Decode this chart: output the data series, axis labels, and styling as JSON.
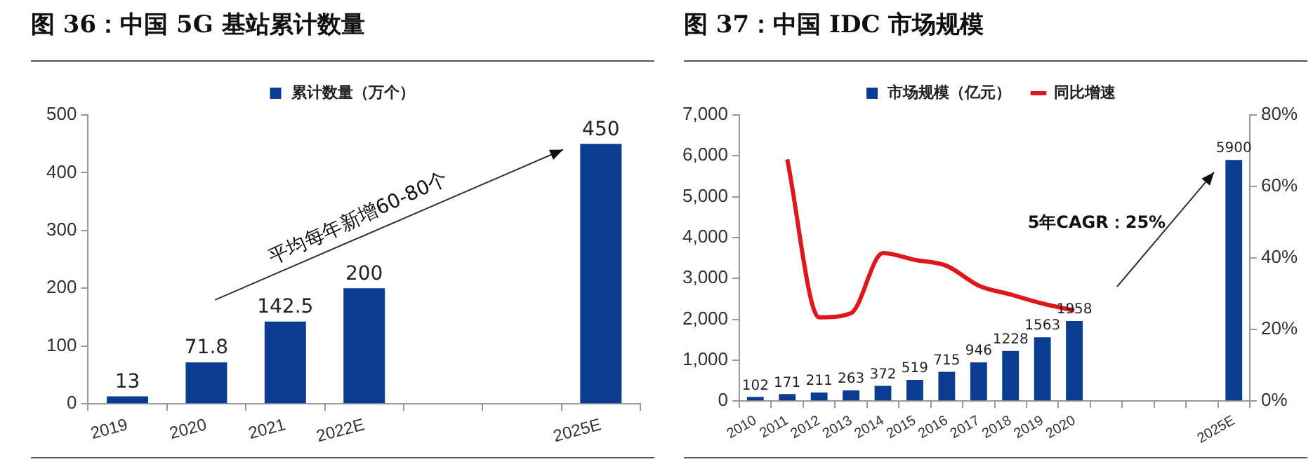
{
  "chart_data": [
    {
      "type": "bar",
      "title": "图 36：中国 5G 基站累计数量",
      "categories": [
        "2019",
        "2020",
        "2021",
        "2022E",
        null,
        null,
        "2025E"
      ],
      "series": [
        {
          "name": "累计数量（万个）",
          "color": "#0a3d91",
          "values": [
            13,
            71.8,
            142.5,
            200,
            null,
            null,
            450
          ]
        }
      ],
      "ylim": [
        0,
        500
      ],
      "yticks": [
        0,
        100,
        200,
        300,
        400,
        500
      ],
      "grid": false,
      "legend": "top",
      "data_labels": true,
      "annotations": [
        "平均每年新增60-80个"
      ]
    },
    {
      "type": "bar",
      "title": "图 37：中国 IDC 市场规模",
      "categories": [
        "2010",
        "2011",
        "2012",
        "2013",
        "2014",
        "2015",
        "2016",
        "2017",
        "2018",
        "2019",
        "2020",
        null,
        null,
        null,
        null,
        "2025E"
      ],
      "series": [
        {
          "name": "市场规模（亿元）",
          "color": "#0a3d91",
          "values": [
            102,
            171,
            211,
            263,
            372,
            519,
            715,
            946,
            1228,
            1563,
            1958,
            null,
            null,
            null,
            null,
            5900
          ],
          "value_labels": [
            "102",
            "171",
            "211",
            "263",
            "372",
            "519",
            "715",
            "946",
            "1228",
            "1563",
            "1958",
            null,
            null,
            null,
            null,
            "5900"
          ]
        },
        {
          "name": "同比增速",
          "type": "line",
          "axis": "y2",
          "color": "#e0161d",
          "values": [
            null,
            67.6,
            23.4,
            24.6,
            41.4,
            39.5,
            37.8,
            32.3,
            29.8,
            27.3,
            25.3,
            null,
            null,
            null,
            null,
            null
          ]
        }
      ],
      "ylim": [
        0,
        7000
      ],
      "yticks": [
        0,
        {
          "value": 1000,
          "label": "1,000"
        },
        {
          "value": 2000,
          "label": "2,000"
        },
        {
          "value": 3000,
          "label": "3,000"
        },
        {
          "value": 4000,
          "label": "4,000"
        },
        {
          "value": 5000,
          "label": "5,000"
        },
        {
          "value": 6000,
          "label": "6,000"
        },
        {
          "value": 7000,
          "label": "7,000"
        }
      ],
      "y2lim": [
        0,
        80
      ],
      "y2ticks": [
        {
          "value": 0,
          "label": "0%"
        },
        {
          "value": 20,
          "label": "20%"
        },
        {
          "value": 40,
          "label": "40%"
        },
        {
          "value": 60,
          "label": "60%"
        },
        {
          "value": 80,
          "label": "80%"
        }
      ],
      "grid": false,
      "legend": "top",
      "marker": "none",
      "annotations": [
        "5年CAGR：25%"
      ]
    }
  ]
}
